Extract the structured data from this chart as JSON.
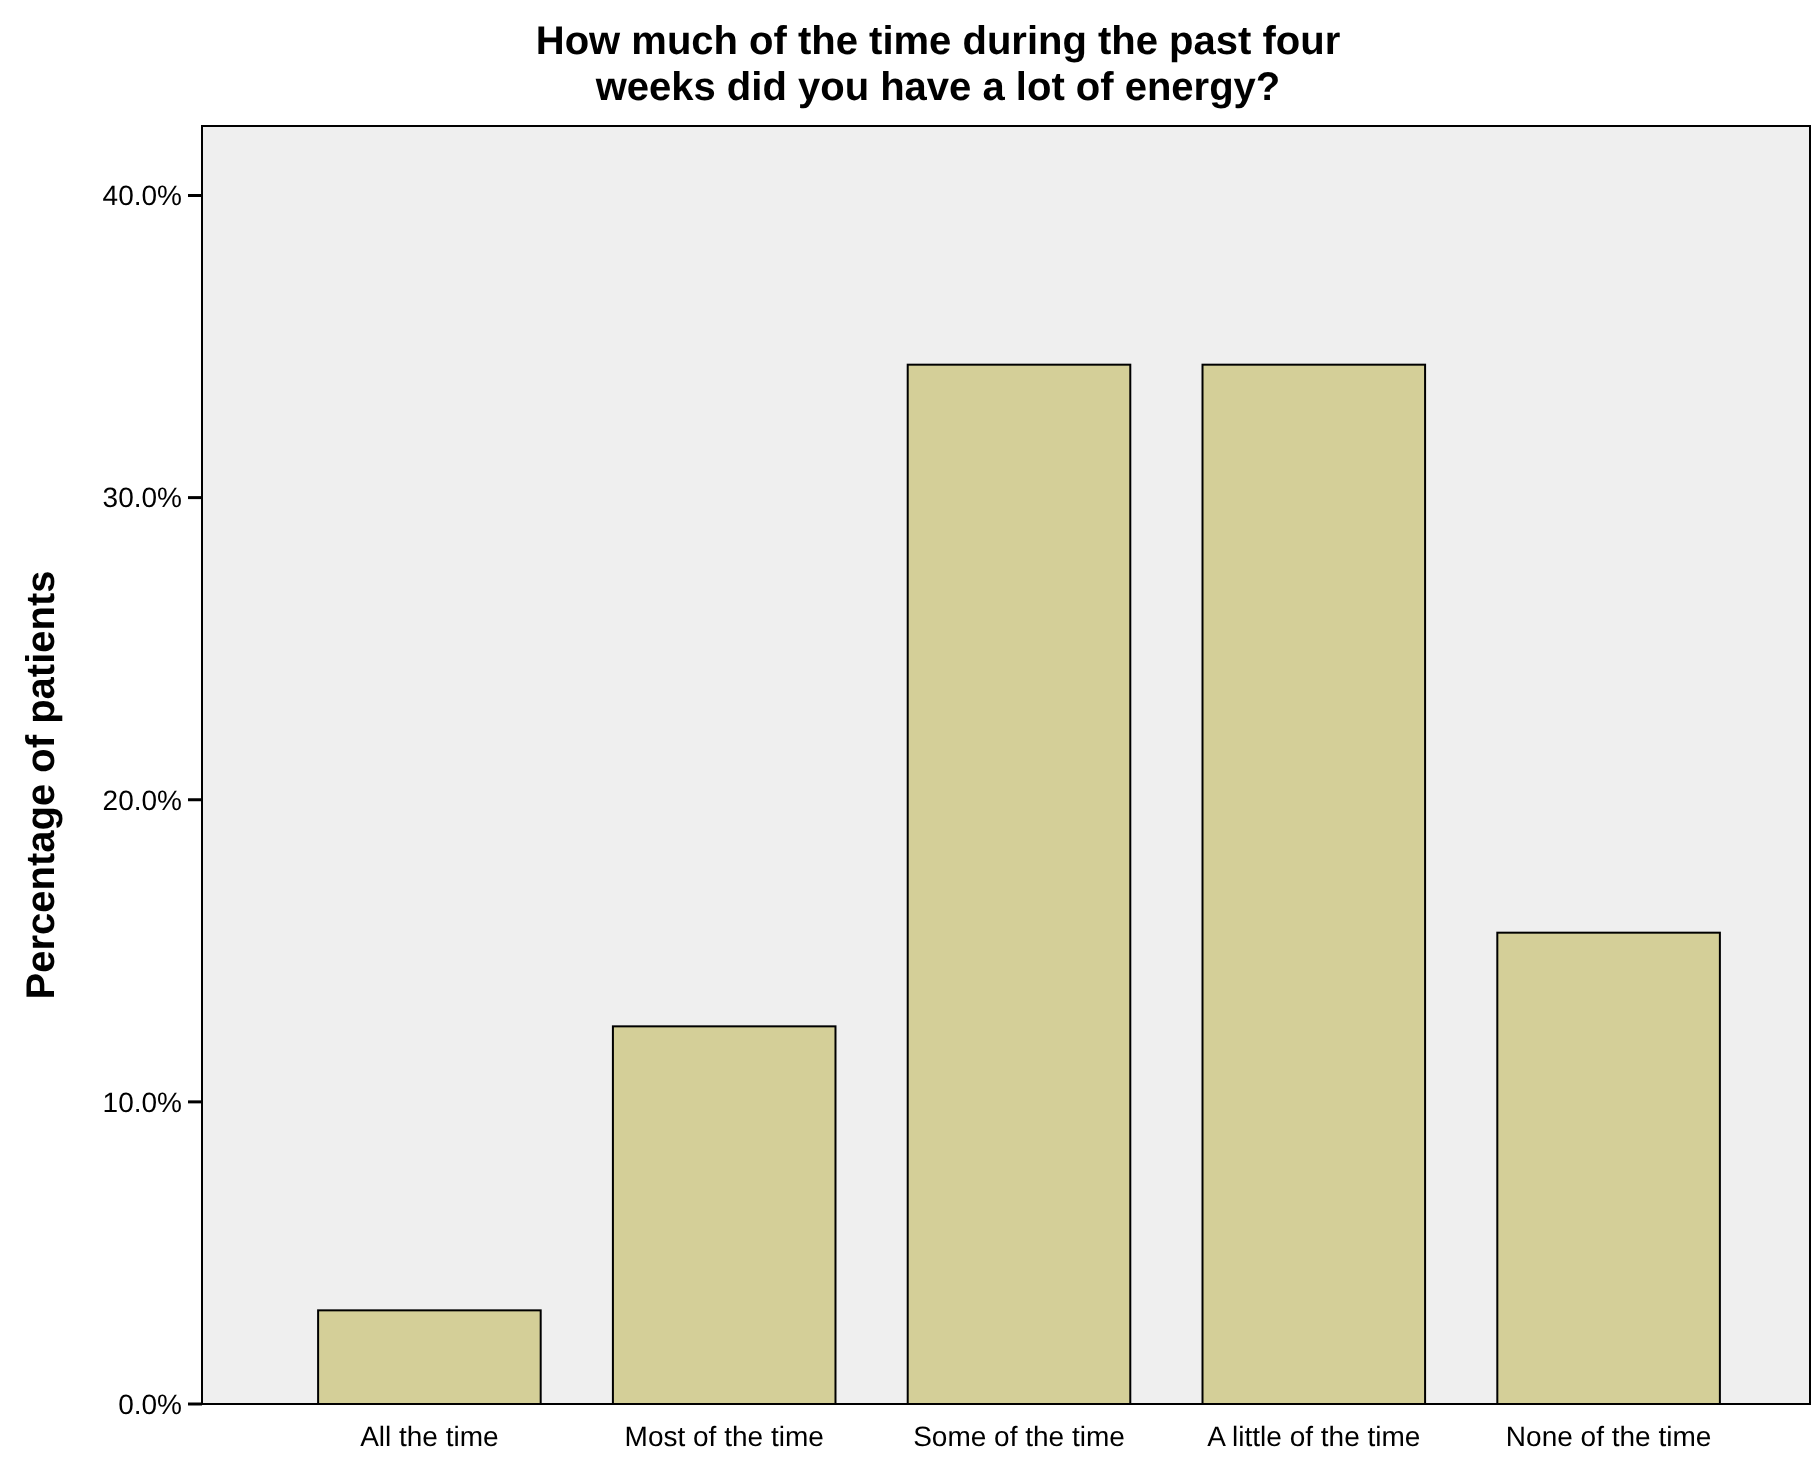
{
  "chart_data": {
    "type": "bar",
    "title": "How much of the time during the past four weeks did you have a lot of energy?",
    "ylabel": "Percentage of patients",
    "categories": [
      "All the time",
      "Most of the time",
      "Some of the time",
      "A little of the time",
      "None of the time"
    ],
    "values": [
      3.1,
      12.5,
      34.4,
      34.4,
      15.6
    ],
    "color": "#d4cf98",
    "ylim": [
      0,
      42.3
    ],
    "yticks": [
      {
        "value": 0,
        "label": "0.0%"
      },
      {
        "value": 10,
        "label": "10.0%"
      },
      {
        "value": 20,
        "label": "20.0%"
      },
      {
        "value": 30,
        "label": "30.0%"
      },
      {
        "value": 40,
        "label": "40.0%"
      }
    ],
    "grid": false
  }
}
